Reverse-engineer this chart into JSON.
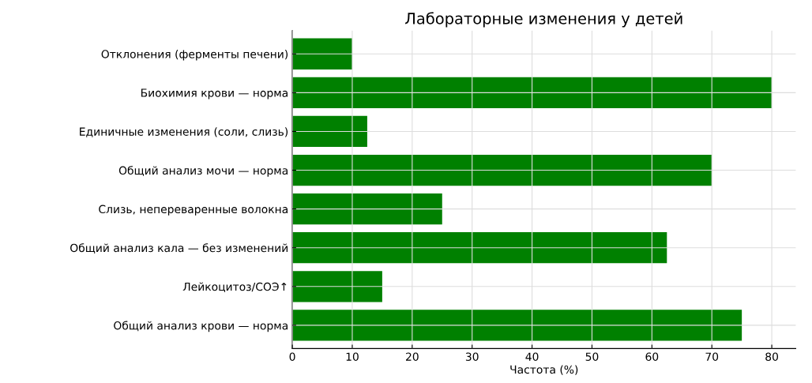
{
  "chart_data": {
    "type": "bar",
    "orientation": "horizontal",
    "title": "Лабораторные изменения у детей",
    "xlabel": "Частота (%)",
    "categories": [
      "Отклонения (ферменты печени)",
      "Биохимия крови — норма",
      "Единичные изменения (соли, слизь)",
      "Общий анализ мочи — норма",
      "Слизь, непереваренные волокна",
      "Общий анализ кала — без изменений",
      "Лейкоцитоз/СОЭ↑",
      "Общий анализ крови — норма"
    ],
    "values": [
      10,
      80,
      12.5,
      70,
      25,
      62.5,
      15,
      75
    ],
    "color": "#008000",
    "xlim": [
      0,
      84
    ],
    "xticks": [
      0,
      10,
      20,
      30,
      40,
      50,
      60,
      70,
      80
    ],
    "grid": true
  }
}
